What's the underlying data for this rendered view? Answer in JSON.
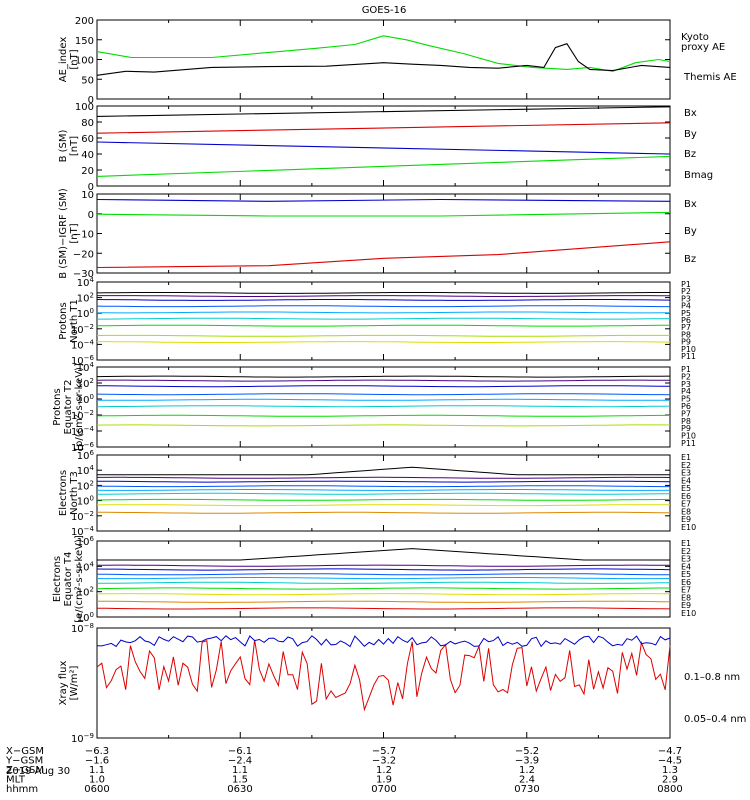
{
  "title": "GOES-16",
  "date": "2019 Aug 30",
  "chart_data": [
    {
      "id": "ae",
      "type": "line",
      "ylabel": [
        "AE_index",
        "[nT]"
      ],
      "ylim": [
        0,
        200
      ],
      "yticks": [
        "200",
        "150",
        "100",
        "50",
        "0"
      ],
      "yscale": "linear",
      "series": [
        {
          "name": "Kyoto",
          "name2": "proxy AE",
          "color": "#00dd00",
          "x": [
            0,
            0.06,
            0.12,
            0.2,
            0.3,
            0.38,
            0.45,
            0.5,
            0.54,
            0.58,
            0.64,
            0.7,
            0.76,
            0.82,
            0.86,
            0.9,
            0.94,
            0.98,
            1
          ],
          "y": [
            120,
            105,
            105,
            105,
            118,
            128,
            138,
            160,
            150,
            135,
            115,
            90,
            80,
            75,
            80,
            70,
            92,
            100,
            95
          ]
        },
        {
          "name": "Themis AE",
          "color": "#000000",
          "x": [
            0,
            0.05,
            0.1,
            0.2,
            0.3,
            0.4,
            0.5,
            0.55,
            0.6,
            0.65,
            0.7,
            0.75,
            0.78,
            0.8,
            0.82,
            0.84,
            0.86,
            0.9,
            0.95,
            1
          ],
          "y": [
            60,
            70,
            68,
            80,
            82,
            83,
            92,
            88,
            85,
            80,
            78,
            85,
            80,
            130,
            140,
            95,
            75,
            72,
            85,
            80
          ]
        }
      ]
    },
    {
      "id": "bsm",
      "type": "line",
      "ylabel": [
        "B (SM)",
        "[nT]"
      ],
      "ylim": [
        0,
        100
      ],
      "yticks": [
        "100",
        "80",
        "60",
        "40",
        "20",
        "0"
      ],
      "yscale": "linear",
      "series": [
        {
          "name": "Bx",
          "color": "#0000cc",
          "x": [
            0,
            1
          ],
          "y": [
            55,
            40
          ]
        },
        {
          "name": "By",
          "color": "#00dd00",
          "x": [
            0,
            1
          ],
          "y": [
            12,
            37
          ]
        },
        {
          "name": "Bz",
          "color": "#dd0000",
          "x": [
            0,
            1
          ],
          "y": [
            66,
            79
          ]
        },
        {
          "name": "Bmag",
          "color": "#000000",
          "x": [
            0,
            1
          ],
          "y": [
            87,
            99
          ]
        }
      ]
    },
    {
      "id": "bigrf",
      "type": "line",
      "ylabel": [
        "B (SM)−IGRF (SM)",
        "[nT]"
      ],
      "ylim": [
        -30,
        13
      ],
      "yticks": [
        "10",
        "0",
        "−10",
        "−20",
        "−30"
      ],
      "yscale": "linear",
      "series": [
        {
          "name": "Bx",
          "color": "#0000cc",
          "x": [
            0,
            0.3,
            0.6,
            1
          ],
          "y": [
            10,
            9,
            10,
            9
          ]
        },
        {
          "name": "By",
          "color": "#00dd00",
          "x": [
            0,
            0.3,
            0.6,
            1
          ],
          "y": [
            2,
            1,
            1,
            3
          ]
        },
        {
          "name": "Bz",
          "color": "#dd0000",
          "x": [
            0,
            0.3,
            0.5,
            0.7,
            1
          ],
          "y": [
            -27,
            -26,
            -22,
            -20,
            -13
          ]
        }
      ]
    },
    {
      "id": "pnorth",
      "type": "line",
      "ylabel": [
        "Protons",
        "North T1"
      ],
      "ylim": [
        -6,
        4
      ],
      "yticks": [
        "10^4",
        "10^2",
        "10^0",
        "10^-2",
        "10^-4",
        "10^-6"
      ],
      "yscale": "log",
      "legend": [
        "P1",
        "P2",
        "P3",
        "P4",
        "P5",
        "P6",
        "P7",
        "P8",
        "P9",
        "P10",
        "P11"
      ],
      "levels": [
        2.6,
        2.2,
        1.7,
        0.9,
        0.1,
        -0.7,
        -1.6,
        -2.9,
        -3.7,
        -6.5,
        -6.5
      ],
      "colors": [
        "#000000",
        "#4b0082",
        "#0000cc",
        "#0055ff",
        "#00aaff",
        "#00cccc",
        "#00dd00",
        "#aadd00",
        "#dddd00",
        "#dd8800",
        "#dd0000"
      ]
    },
    {
      "id": "pequator",
      "type": "line",
      "ylabel": [
        "Protons",
        "Equator T2",
        "[p/(cm²-s-sr-keV)]"
      ],
      "ylim": [
        -6,
        4
      ],
      "yticks": [
        "10^4",
        "10^2",
        "10^0",
        "10^-2",
        "10^-4",
        "10^-6"
      ],
      "yscale": "log",
      "legend": [
        "P1",
        "P2",
        "P3",
        "P4",
        "P5",
        "P6",
        "P7",
        "P8",
        "P9",
        "P10",
        "P11"
      ],
      "levels": [
        2.8,
        2.3,
        1.6,
        0.6,
        -0.1,
        -0.9,
        -2.1,
        -3.3,
        -6.5,
        -6.5,
        -6.5
      ],
      "colors": [
        "#000000",
        "#4b0082",
        "#0000cc",
        "#0055ff",
        "#00aaff",
        "#00cccc",
        "#00dd00",
        "#aadd00",
        "#dddd00",
        "#dd8800",
        "#dd0000"
      ]
    },
    {
      "id": "enorth",
      "type": "line",
      "ylabel": [
        "Electrons",
        "North T3"
      ],
      "ylim": [
        -4,
        6
      ],
      "yticks": [
        "10^6",
        "10^4",
        "10^2",
        "10^0",
        "10^-2",
        "10^-4"
      ],
      "yscale": "log",
      "legend": [
        "E1",
        "E2",
        "E3",
        "E4",
        "E5",
        "E6",
        "E7",
        "E8",
        "E9",
        "E10"
      ],
      "levels": [
        3.4,
        3.0,
        2.5,
        1.9,
        1.4,
        0.9,
        0.1,
        -0.6,
        -1.6,
        -5.0
      ],
      "colors": [
        "#000000",
        "#4b0082",
        "#0000cc",
        "#0055ff",
        "#00aaff",
        "#00cccc",
        "#00dd00",
        "#dddd00",
        "#dd8800",
        "#dd0000"
      ]
    },
    {
      "id": "eequator",
      "type": "line",
      "ylabel": [
        "Electrons",
        "Equator T4",
        "[e/(cm²-s-sr-keV)]"
      ],
      "ylim": [
        -2,
        6
      ],
      "yticks": [
        "10^6",
        "10^4",
        "10^2",
        "10^0"
      ],
      "yscale": "log",
      "legend": [
        "E1",
        "E2",
        "E3",
        "E4",
        "E5",
        "E6",
        "E7",
        "E8",
        "E9",
        "E10"
      ],
      "levels": [
        4.0,
        3.4,
        3.0,
        2.5,
        2.1,
        1.6,
        1.0,
        0.4,
        -0.4,
        -1.1
      ],
      "colors": [
        "#000000",
        "#4b0082",
        "#0000cc",
        "#0055ff",
        "#00aaff",
        "#00cccc",
        "#00dd00",
        "#dddd00",
        "#dd8800",
        "#dd0000"
      ]
    },
    {
      "id": "xray",
      "type": "line",
      "ylabel": [
        "Xray flux",
        "[W/m²]"
      ],
      "ylim": [
        -9,
        -8
      ],
      "yticks": [
        "10^-8",
        "10^-9"
      ],
      "yscale": "log",
      "series": [
        {
          "name": "0.1–0.8 nm",
          "color": "#dd0000",
          "base": -8.35,
          "amp": 0.25
        },
        {
          "name": "0.05–0.4 nm",
          "color": "#0000cc",
          "base": -8.12,
          "amp": 0.05
        }
      ]
    }
  ],
  "xaxis": {
    "rows": [
      {
        "label": "X−GSM",
        "values": [
          "−6.3",
          "−6.1",
          "−5.7",
          "−5.2",
          "−4.7"
        ]
      },
      {
        "label": "Y−GSM",
        "values": [
          "−1.6",
          "−2.4",
          "−3.2",
          "−3.9",
          "−4.5"
        ]
      },
      {
        "label": "Z−GSM",
        "values": [
          "1.1",
          "1.1",
          "1.2",
          "1.2",
          "1.3"
        ]
      },
      {
        "label": "MLT",
        "values": [
          "1.0",
          "1.5",
          "1.9",
          "2.4",
          "2.9"
        ]
      },
      {
        "label": "hhmm",
        "values": [
          "0600",
          "0630",
          "0700",
          "0730",
          "0800"
        ]
      }
    ]
  }
}
